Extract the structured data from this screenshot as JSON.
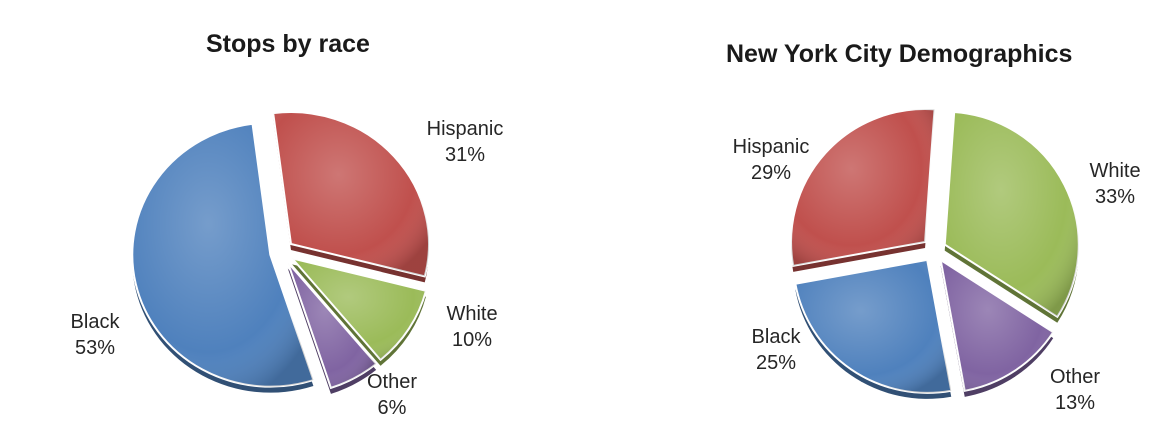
{
  "chart_data": [
    {
      "type": "pie",
      "title": "Stops by race",
      "slices": [
        {
          "name": "Hispanic",
          "value": 31,
          "label": "31%",
          "color": "#c0504d"
        },
        {
          "name": "White",
          "value": 10,
          "label": "10%",
          "color": "#9bbb59"
        },
        {
          "name": "Other",
          "value": 6,
          "label": "6%",
          "color": "#8064a2"
        },
        {
          "name": "Black",
          "value": 53,
          "label": "53%",
          "color": "#4f81bd"
        }
      ],
      "exploded": true,
      "legend": "none (labels beside slices)"
    },
    {
      "type": "pie",
      "title": "New York City Demographics",
      "slices": [
        {
          "name": "White",
          "value": 33,
          "label": "33%",
          "color": "#9bbb59"
        },
        {
          "name": "Other",
          "value": 13,
          "label": "13%",
          "color": "#8064a2"
        },
        {
          "name": "Black",
          "value": 25,
          "label": "25%",
          "color": "#4f81bd"
        },
        {
          "name": "Hispanic",
          "value": 29,
          "label": "29%",
          "color": "#c0504d"
        }
      ],
      "exploded": true,
      "legend": "none (labels beside slices)"
    }
  ]
}
